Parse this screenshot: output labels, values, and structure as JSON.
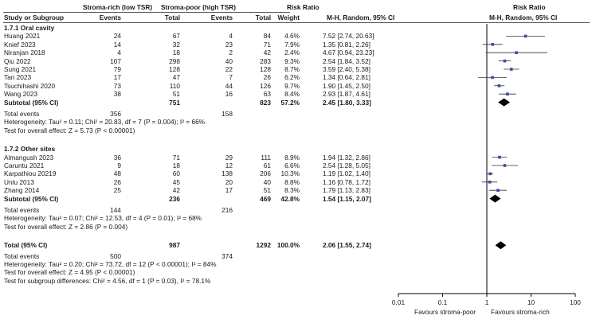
{
  "headers": {
    "study": "Study or Subgroup",
    "group1": "Stroma-rich (low TSR)",
    "group2": "Stroma-poor (high TSR)",
    "events1": "Events",
    "total1": "Total",
    "events2": "Events",
    "total2": "Total",
    "weight": "Weight",
    "rr_title": "Risk Ratio",
    "rr_method": "M-H, Random, 95% CI",
    "plot_title": "Risk Ratio",
    "plot_method": "M-H, Random, 95% CI"
  },
  "subgroups": [
    {
      "title": "1.7.1 Oral cavity",
      "studies": [
        {
          "name": "Huang 2021",
          "e1": "24",
          "t1": "67",
          "e2": "4",
          "t2": "84",
          "w": "4.6%",
          "ci": "7.52 [2.74, 20.63]"
        },
        {
          "name": "Knief 2023",
          "e1": "14",
          "t1": "32",
          "e2": "23",
          "t2": "71",
          "w": "7.9%",
          "ci": "1.35 [0.81, 2.26]"
        },
        {
          "name": "Niranjan 2018",
          "e1": "4",
          "t1": "18",
          "e2": "2",
          "t2": "42",
          "w": "2.4%",
          "ci": "4.67 [0.94, 23.23]"
        },
        {
          "name": "Qiu 2022",
          "e1": "107",
          "t1": "298",
          "e2": "40",
          "t2": "283",
          "w": "9.3%",
          "ci": "2.54 [1.84, 3.52]"
        },
        {
          "name": "Sung 2021",
          "e1": "79",
          "t1": "128",
          "e2": "22",
          "t2": "128",
          "w": "8.7%",
          "ci": "3.59 [2.40, 5.38]"
        },
        {
          "name": "Tan 2023",
          "e1": "17",
          "t1": "47",
          "e2": "7",
          "t2": "26",
          "w": "6.2%",
          "ci": "1.34 [0.64, 2.81]"
        },
        {
          "name": "Tsuchihashi 2020",
          "e1": "73",
          "t1": "110",
          "e2": "44",
          "t2": "126",
          "w": "9.7%",
          "ci": "1.90 [1.45, 2.50]"
        },
        {
          "name": "Wang 2023",
          "e1": "38",
          "t1": "51",
          "e2": "16",
          "t2": "63",
          "w": "8.4%",
          "ci": "2.93 [1.87, 4.61]"
        }
      ],
      "subtotal": {
        "label": "Subtotal (95% CI)",
        "t1": "751",
        "t2": "823",
        "w": "57.2%",
        "ci": "2.45 [1.80, 3.33]"
      },
      "total_events": {
        "label": "Total events",
        "e1": "356",
        "e2": "158"
      },
      "heterogeneity": "Heterogeneity: Tau² = 0.11; Chi² = 20.83, df = 7 (P = 0.004); I² = 66%",
      "overall": "Test for overall effect: Z = 5.73 (P < 0.00001)"
    },
    {
      "title": "1.7.2 Other sites",
      "studies": [
        {
          "name": "Almangush 2023",
          "e1": "36",
          "t1": "71",
          "e2": "29",
          "t2": "111",
          "w": "8.9%",
          "ci": "1.94 [1.32, 2.86]"
        },
        {
          "name": "Caruntu 2021",
          "e1": "9",
          "t1": "18",
          "e2": "12",
          "t2": "61",
          "w": "6.6%",
          "ci": "2.54 [1.28, 5.05]"
        },
        {
          "name": "Karpathiou 20219",
          "e1": "48",
          "t1": "60",
          "e2": "138",
          "t2": "206",
          "w": "10.3%",
          "ci": "1.19 [1.02, 1.40]"
        },
        {
          "name": "Unlu 2013",
          "e1": "26",
          "t1": "45",
          "e2": "20",
          "t2": "40",
          "w": "8.8%",
          "ci": "1.16 [0.78, 1.72]"
        },
        {
          "name": "Zhang 2014",
          "e1": "25",
          "t1": "42",
          "e2": "17",
          "t2": "51",
          "w": "8.3%",
          "ci": "1.79 [1.13, 2.83]"
        }
      ],
      "subtotal": {
        "label": "Subtotal (95% CI)",
        "t1": "236",
        "t2": "469",
        "w": "42.8%",
        "ci": "1.54 [1.15, 2.07]"
      },
      "total_events": {
        "label": "Total events",
        "e1": "144",
        "e2": "216"
      },
      "heterogeneity": "Heterogeneity: Tau² = 0.07; Chi² = 12.53, df = 4 (P = 0.01); I² = 68%",
      "overall": "Test for overall effect: Z = 2.86 (P = 0.004)"
    }
  ],
  "total": {
    "label": "Total (95% CI)",
    "t1": "987",
    "t2": "1292",
    "w": "100.0%",
    "ci": "2.06 [1.55, 2.74]",
    "events_label": "Total events",
    "e1": "500",
    "e2": "374",
    "heterogeneity": "Heterogeneity: Tau² = 0.20; Chi² = 73.72, df = 12 (P < 0.00001); I² = 84%",
    "overall": "Test for overall effect: Z = 4.95 (P < 0.00001)",
    "subgroup_diff": "Test for subgroup differences: Chi² = 4.56, df = 1 (P = 0.03), I² = 78.1%"
  },
  "chart_data": {
    "type": "scatter",
    "scale": "log",
    "xlim": [
      0.01,
      100
    ],
    "ticks": [
      "0.01",
      "0.1",
      "1",
      "10",
      "100"
    ],
    "tick_values": [
      0.01,
      0.1,
      1,
      10,
      100
    ],
    "reference_line": 1,
    "favours_left": "Favours stroma-poor",
    "favours_right": "Favours stroma-rich",
    "study_color": "#3b4aa0",
    "diamond_color": "#000000",
    "studies": [
      {
        "name": "Huang 2021",
        "rr": 7.52,
        "lo": 2.74,
        "hi": 20.63
      },
      {
        "name": "Knief 2023",
        "rr": 1.35,
        "lo": 0.81,
        "hi": 2.26
      },
      {
        "name": "Niranjan 2018",
        "rr": 4.67,
        "lo": 0.94,
        "hi": 23.23
      },
      {
        "name": "Qiu 2022",
        "rr": 2.54,
        "lo": 1.84,
        "hi": 3.52
      },
      {
        "name": "Sung 2021",
        "rr": 3.59,
        "lo": 2.4,
        "hi": 5.38
      },
      {
        "name": "Tan 2023",
        "rr": 1.34,
        "lo": 0.64,
        "hi": 2.81
      },
      {
        "name": "Tsuchihashi 2020",
        "rr": 1.9,
        "lo": 1.45,
        "hi": 2.5
      },
      {
        "name": "Wang 2023",
        "rr": 2.93,
        "lo": 1.87,
        "hi": 4.61
      },
      {
        "name": "Almangush 2023",
        "rr": 1.94,
        "lo": 1.32,
        "hi": 2.86
      },
      {
        "name": "Caruntu 2021",
        "rr": 2.54,
        "lo": 1.28,
        "hi": 5.05
      },
      {
        "name": "Karpathiou 20219",
        "rr": 1.19,
        "lo": 1.02,
        "hi": 1.4
      },
      {
        "name": "Unlu 2013",
        "rr": 1.16,
        "lo": 0.78,
        "hi": 1.72
      },
      {
        "name": "Zhang 2014",
        "rr": 1.79,
        "lo": 1.13,
        "hi": 2.83
      }
    ],
    "diamonds": [
      {
        "name": "Subtotal oral cavity",
        "rr": 2.45,
        "lo": 1.8,
        "hi": 3.33
      },
      {
        "name": "Subtotal other sites",
        "rr": 1.54,
        "lo": 1.15,
        "hi": 2.07
      },
      {
        "name": "Total",
        "rr": 2.06,
        "lo": 1.55,
        "hi": 2.74
      }
    ]
  }
}
